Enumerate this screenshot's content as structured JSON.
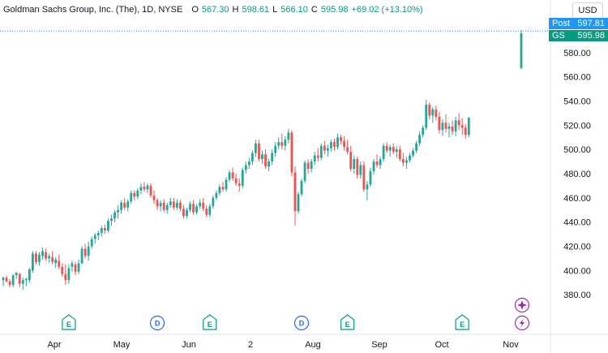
{
  "header": {
    "name": "Goldman Sachs Group, Inc. (The), 1D, NYSE",
    "o_label": "O",
    "o": "567.30",
    "h_label": "H",
    "h": "598.61",
    "l_label": "L",
    "l": "566.10",
    "c_label": "C",
    "c": "595.98",
    "change": "+69.02 (+13.10%)"
  },
  "currency": "USD",
  "post_tag": {
    "label": "Post",
    "value": "597.81"
  },
  "price_tag": {
    "label": "GS",
    "value": "595.98"
  },
  "colors": {
    "up": "#26a69a",
    "down": "#ef5350",
    "post": "#2196f3",
    "event": "#089981",
    "dividend": "#2962ff",
    "split": "#9c27b0"
  },
  "chart_data": {
    "type": "candlestick",
    "y_ticks": [
      "380.00",
      "400.00",
      "420.00",
      "440.00",
      "460.00",
      "480.00",
      "500.00",
      "520.00",
      "540.00",
      "560.00",
      "580.00"
    ],
    "x_ticks": [
      "Apr",
      "May",
      "Jun",
      "2",
      "Aug",
      "Sep",
      "Oct",
      "Nov"
    ],
    "ylim": [
      362,
      606
    ],
    "post_price": 597.81,
    "last_price": 595.98,
    "candles": [
      [
        392,
        395,
        387,
        394
      ],
      [
        394,
        396,
        390,
        391
      ],
      [
        391,
        393,
        386,
        388
      ],
      [
        388,
        397,
        386,
        396
      ],
      [
        396,
        399,
        393,
        398
      ],
      [
        397,
        398,
        386,
        389
      ],
      [
        389,
        394,
        384,
        392
      ],
      [
        392,
        394,
        387,
        393
      ],
      [
        392,
        402,
        390,
        401
      ],
      [
        400,
        416,
        398,
        414
      ],
      [
        414,
        416,
        405,
        407
      ],
      [
        407,
        415,
        404,
        413
      ],
      [
        412,
        419,
        409,
        416
      ],
      [
        415,
        418,
        408,
        410
      ],
      [
        410,
        414,
        406,
        412
      ],
      [
        411,
        416,
        405,
        407
      ],
      [
        406,
        411,
        402,
        409
      ],
      [
        408,
        413,
        401,
        403
      ],
      [
        403,
        406,
        395,
        397
      ],
      [
        397,
        405,
        388,
        392
      ],
      [
        392,
        405,
        389,
        402
      ],
      [
        403,
        408,
        399,
        406
      ],
      [
        405,
        407,
        396,
        399
      ],
      [
        399,
        409,
        397,
        406
      ],
      [
        406,
        420,
        405,
        418
      ],
      [
        418,
        422,
        410,
        412
      ],
      [
        412,
        424,
        408,
        420
      ],
      [
        420,
        428,
        418,
        426
      ],
      [
        426,
        431,
        422,
        429
      ],
      [
        429,
        433,
        425,
        431
      ],
      [
        431,
        437,
        428,
        435
      ],
      [
        435,
        438,
        430,
        433
      ],
      [
        433,
        443,
        431,
        441
      ],
      [
        441,
        446,
        437,
        443
      ],
      [
        443,
        450,
        440,
        448
      ],
      [
        448,
        454,
        443,
        450
      ],
      [
        450,
        458,
        447,
        456
      ],
      [
        456,
        460,
        450,
        452
      ],
      [
        452,
        459,
        449,
        457
      ],
      [
        457,
        466,
        455,
        464
      ],
      [
        464,
        466,
        458,
        461
      ],
      [
        461,
        468,
        459,
        466
      ],
      [
        466,
        472,
        463,
        469
      ],
      [
        469,
        473,
        465,
        467
      ],
      [
        467,
        472,
        464,
        470
      ],
      [
        470,
        472,
        460,
        462
      ],
      [
        462,
        466,
        455,
        458
      ],
      [
        458,
        460,
        450,
        453
      ],
      [
        453,
        458,
        449,
        456
      ],
      [
        456,
        459,
        448,
        450
      ],
      [
        450,
        456,
        447,
        454
      ],
      [
        454,
        460,
        452,
        457
      ],
      [
        457,
        460,
        450,
        452
      ],
      [
        452,
        459,
        450,
        456
      ],
      [
        456,
        458,
        449,
        451
      ],
      [
        451,
        454,
        443,
        445
      ],
      [
        445,
        452,
        443,
        450
      ],
      [
        450,
        457,
        448,
        455
      ],
      [
        455,
        458,
        446,
        448
      ],
      [
        448,
        455,
        446,
        453
      ],
      [
        453,
        459,
        451,
        456
      ],
      [
        456,
        460,
        449,
        451
      ],
      [
        451,
        454,
        444,
        446
      ],
      [
        446,
        455,
        444,
        453
      ],
      [
        453,
        462,
        451,
        460
      ],
      [
        460,
        466,
        458,
        464
      ],
      [
        464,
        471,
        462,
        469
      ],
      [
        469,
        473,
        465,
        467
      ],
      [
        467,
        477,
        465,
        475
      ],
      [
        475,
        483,
        473,
        481
      ],
      [
        481,
        485,
        474,
        476
      ],
      [
        476,
        480,
        470,
        472
      ],
      [
        472,
        476,
        465,
        470
      ],
      [
        470,
        485,
        468,
        483
      ],
      [
        483,
        490,
        480,
        487
      ],
      [
        487,
        493,
        484,
        490
      ],
      [
        490,
        499,
        487,
        497
      ],
      [
        497,
        508,
        494,
        505
      ],
      [
        505,
        508,
        490,
        492
      ],
      [
        492,
        499,
        488,
        496
      ],
      [
        496,
        500,
        484,
        486
      ],
      [
        486,
        492,
        482,
        490
      ],
      [
        490,
        500,
        487,
        497
      ],
      [
        497,
        506,
        494,
        503
      ],
      [
        503,
        510,
        500,
        506
      ],
      [
        506,
        513,
        500,
        503
      ],
      [
        503,
        511,
        499,
        508
      ],
      [
        508,
        517,
        505,
        514
      ],
      [
        514,
        516,
        478,
        481
      ],
      [
        481,
        486,
        437,
        449
      ],
      [
        449,
        465,
        447,
        463
      ],
      [
        463,
        476,
        461,
        474
      ],
      [
        474,
        491,
        472,
        489
      ],
      [
        489,
        492,
        480,
        484
      ],
      [
        484,
        492,
        481,
        490
      ],
      [
        490,
        498,
        487,
        495
      ],
      [
        495,
        501,
        490,
        493
      ],
      [
        493,
        505,
        491,
        503
      ],
      [
        503,
        507,
        496,
        499
      ],
      [
        499,
        504,
        494,
        501
      ],
      [
        501,
        508,
        498,
        506
      ],
      [
        506,
        509,
        499,
        502
      ],
      [
        502,
        513,
        500,
        510
      ],
      [
        510,
        512,
        504,
        507
      ],
      [
        507,
        511,
        499,
        502
      ],
      [
        502,
        508,
        496,
        498
      ],
      [
        498,
        503,
        482,
        484
      ],
      [
        484,
        495,
        480,
        492
      ],
      [
        492,
        494,
        476,
        479
      ],
      [
        479,
        490,
        476,
        487
      ],
      [
        487,
        490,
        465,
        467
      ],
      [
        467,
        474,
        458,
        471
      ],
      [
        471,
        485,
        469,
        482
      ],
      [
        482,
        492,
        479,
        490
      ],
      [
        490,
        496,
        485,
        487
      ],
      [
        487,
        494,
        484,
        492
      ],
      [
        492,
        505,
        490,
        503
      ],
      [
        503,
        506,
        497,
        499
      ],
      [
        499,
        504,
        494,
        502
      ],
      [
        502,
        505,
        496,
        498
      ],
      [
        498,
        503,
        493,
        500
      ],
      [
        500,
        503,
        490,
        492
      ],
      [
        492,
        497,
        486,
        489
      ],
      [
        489,
        494,
        484,
        491
      ],
      [
        491,
        497,
        489,
        495
      ],
      [
        495,
        501,
        493,
        499
      ],
      [
        499,
        507,
        497,
        505
      ],
      [
        505,
        515,
        503,
        512
      ],
      [
        512,
        520,
        510,
        518
      ],
      [
        518,
        541,
        516,
        537
      ],
      [
        537,
        539,
        525,
        528
      ],
      [
        528,
        535,
        522,
        533
      ],
      [
        533,
        536,
        524,
        527
      ],
      [
        527,
        531,
        513,
        516
      ],
      [
        516,
        525,
        511,
        522
      ],
      [
        522,
        529,
        514,
        517
      ],
      [
        517,
        522,
        510,
        519
      ],
      [
        519,
        524,
        512,
        515
      ],
      [
        515,
        527,
        511,
        524
      ],
      [
        524,
        530,
        516,
        520
      ],
      [
        520,
        526,
        512,
        518
      ],
      [
        518,
        521,
        509,
        512
      ],
      [
        512,
        527,
        510,
        526
      ],
      [
        567.3,
        598.61,
        566.1,
        595.98
      ]
    ],
    "gap_before_last": 15,
    "events": [
      {
        "type": "E",
        "index": 20
      },
      {
        "type": "E",
        "index": 63
      },
      {
        "type": "E",
        "index": 105
      },
      {
        "type": "E",
        "index": 140
      }
    ],
    "dividends": [
      {
        "type": "D",
        "index": 47
      },
      {
        "type": "D",
        "index": 91
      }
    ]
  }
}
